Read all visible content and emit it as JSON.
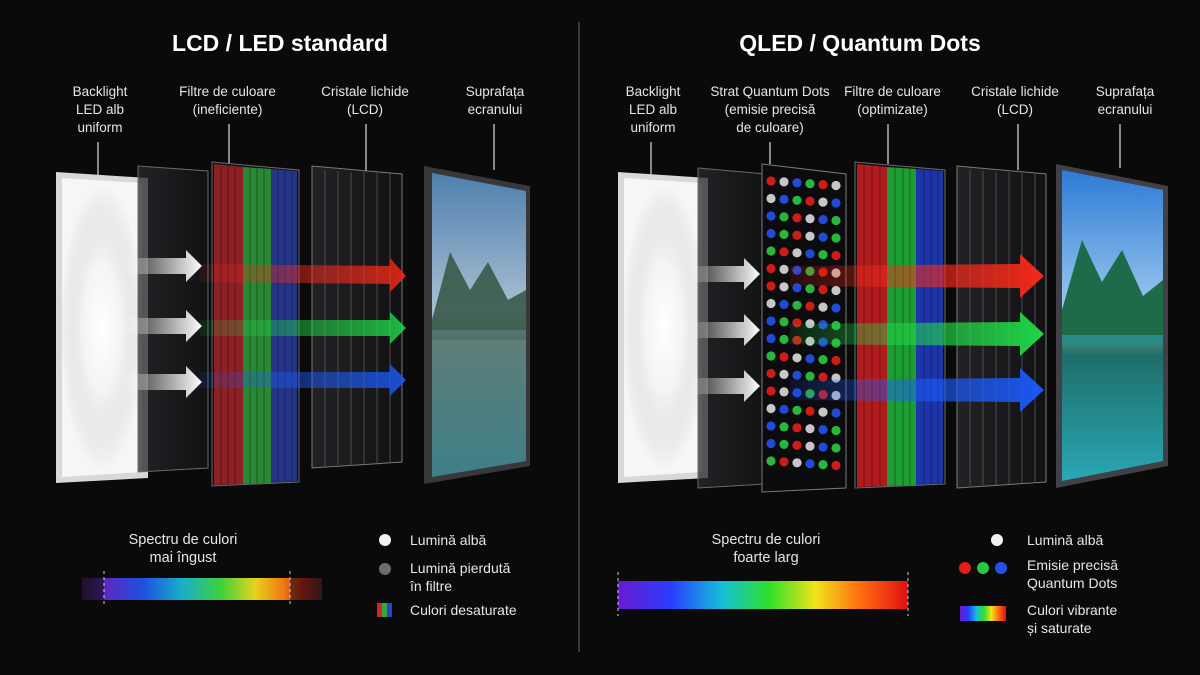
{
  "left": {
    "title": "LCD / LED standard",
    "labels": {
      "backlight": "Backlight\nLED alb\nuniform",
      "filters": "Filtre de culoare\n(ineficiente)",
      "crystals": "Cristale lichide\n(LCD)",
      "surface": "Suprafața\necranului"
    },
    "spectrum_label": "Spectru de culori\nmai îngust",
    "legend": [
      {
        "icon": "white-dot",
        "text": "Lumină albă"
      },
      {
        "icon": "grey-dot",
        "text": "Lumină pierdută\nîn filtre"
      },
      {
        "icon": "rgb-square",
        "text": "Culori desaturate"
      }
    ]
  },
  "right": {
    "title": "QLED / Quantum Dots",
    "labels": {
      "backlight": "Backlight\nLED alb\nuniform",
      "quantum": "Strat Quantum Dots\n(emisie precisă\nde culoare)",
      "filters": "Filtre de culoare\n(optimizate)",
      "crystals": "Cristale lichide\n(LCD)",
      "surface": "Suprafața\necranului"
    },
    "spectrum_label": "Spectru de culori\nfoarte larg",
    "legend": [
      {
        "icon": "white-dot",
        "text": "Lumină albă"
      },
      {
        "icon": "rgb-dots",
        "text": "Emisie precisă\nQuantum Dots"
      },
      {
        "icon": "spectrum-square",
        "text": "Culori vibrante\nși saturate"
      }
    ]
  },
  "colors": {
    "background": "#0a0a0b",
    "red": "#ff2a1a",
    "green": "#22e04a",
    "blue": "#1c5cff"
  }
}
